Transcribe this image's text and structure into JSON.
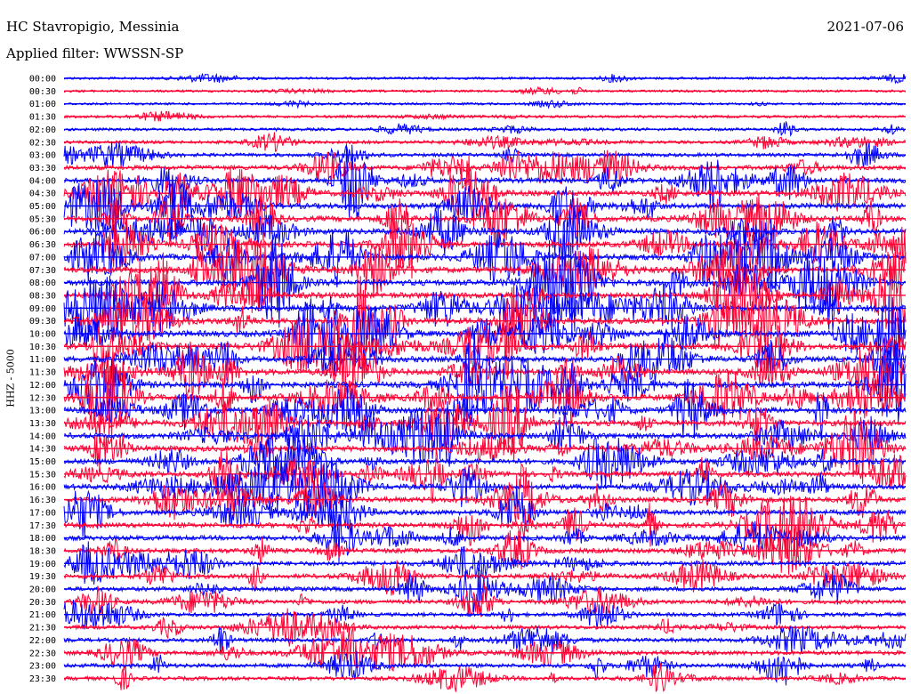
{
  "header": {
    "station": "HC Stavropigio, Messinia",
    "filter": "Applied filter: WWSSN-SP",
    "date": "2021-07-06"
  },
  "colors": {
    "trace_a": "#0000ff",
    "trace_b": "#ff0033"
  },
  "chart_data": {
    "type": "line",
    "title": "HC Stavropigio, Messinia",
    "subtitle": "Applied filter: WWSSN-SP",
    "ylabel": "HHZ - 5000",
    "xlabel": "",
    "date": "2021-07-06",
    "row_labels": [
      "00:00",
      "00:30",
      "01:00",
      "01:30",
      "02:00",
      "02:30",
      "03:00",
      "03:30",
      "04:00",
      "04:30",
      "05:00",
      "05:30",
      "06:00",
      "06:30",
      "07:00",
      "07:30",
      "08:00",
      "08:30",
      "09:00",
      "09:30",
      "10:00",
      "10:30",
      "11:00",
      "11:30",
      "12:00",
      "12:30",
      "13:00",
      "13:30",
      "14:00",
      "14:30",
      "15:00",
      "15:30",
      "16:00",
      "16:30",
      "17:00",
      "17:30",
      "18:00",
      "18:30",
      "19:00",
      "19:30",
      "20:00",
      "20:30",
      "21:00",
      "21:30",
      "22:00",
      "22:30",
      "23:00",
      "23:30"
    ],
    "series": [
      {
        "color": "#0000ff"
      },
      {
        "color": "#ff0033"
      }
    ],
    "row_activity": [
      0.15,
      0.12,
      0.12,
      0.18,
      0.25,
      0.3,
      0.4,
      0.6,
      0.7,
      0.75,
      0.8,
      0.8,
      0.85,
      0.85,
      0.9,
      0.9,
      0.9,
      0.9,
      0.95,
      0.95,
      0.95,
      0.95,
      0.9,
      0.9,
      0.9,
      0.9,
      0.85,
      0.85,
      0.85,
      0.85,
      0.8,
      0.8,
      0.75,
      0.75,
      0.7,
      0.7,
      0.65,
      0.65,
      0.6,
      0.6,
      0.55,
      0.5,
      0.45,
      0.45,
      0.5,
      0.55,
      0.5,
      0.45
    ],
    "grid": false
  }
}
